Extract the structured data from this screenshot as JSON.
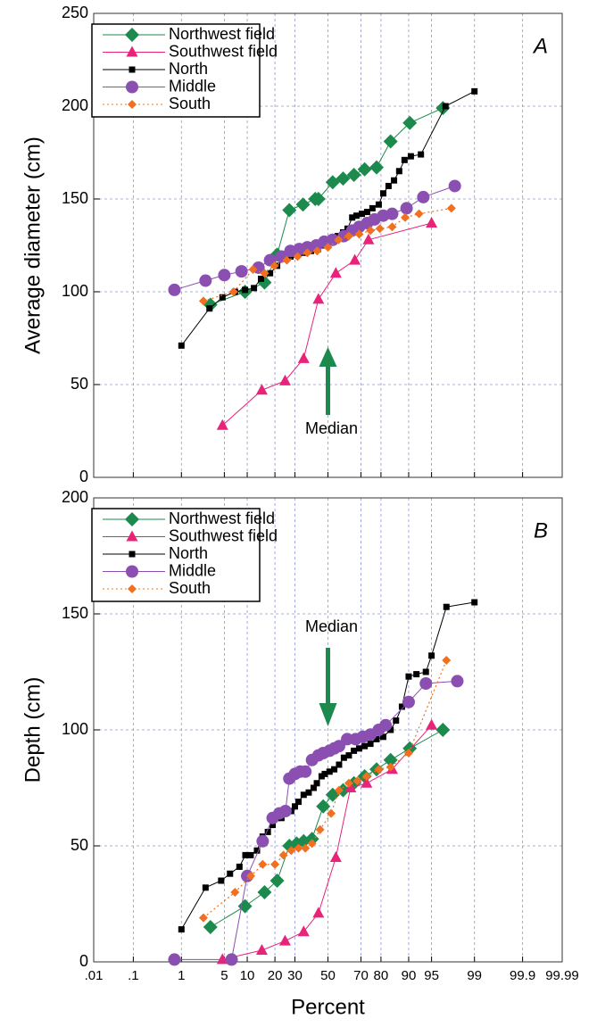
{
  "chart_data": [
    {
      "type": "line",
      "panel_label": "A",
      "annotation": "Median",
      "ylabel": "Average diameter (cm)",
      "xscale": "probability",
      "grid": true,
      "legend": "upper left",
      "xlim": [
        0.01,
        99.99
      ],
      "xticks": [
        0.01,
        0.1,
        1,
        5,
        10,
        20,
        30,
        50,
        70,
        80,
        90,
        95,
        99,
        99.9,
        99.99
      ],
      "ylim": [
        0,
        250
      ],
      "yticks": [
        0,
        50,
        100,
        150,
        200,
        250
      ],
      "series": [
        {
          "name": "Northwest field",
          "color": "#1b8a4c",
          "marker": "diamond",
          "linestyle": "solid",
          "x": [
            3.1,
            9.4,
            15.7,
            21,
            27,
            34.6,
            42,
            44,
            53,
            59.5,
            66,
            72,
            78,
            84,
            90.3,
            96.6
          ],
          "values": [
            93,
            100,
            105,
            120,
            144,
            147,
            150,
            150,
            159,
            161,
            163,
            166,
            167,
            181,
            191,
            199
          ]
        },
        {
          "name": "Southwest field",
          "color": "#e8237a",
          "marker": "triangle",
          "linestyle": "solid",
          "x": [
            4.7,
            14.7,
            24.8,
            35,
            44,
            55,
            66.5,
            74,
            95
          ],
          "values": [
            28,
            47,
            52,
            64,
            96,
            110,
            117,
            128,
            137
          ]
        },
        {
          "name": "North",
          "color": "#000000",
          "marker": "square",
          "linestyle": "solid",
          "x": [
            1.0,
            3.0,
            4.7,
            7.0,
            9.4,
            12,
            14.4,
            17.9,
            21,
            24.4,
            27.6,
            31,
            35,
            39.4,
            43.8,
            47.7,
            52.3,
            56.2,
            59.5,
            62.2,
            65,
            67.5,
            70.5,
            73.3,
            76,
            79,
            81,
            83.2,
            85.3,
            87.1,
            88.8,
            90.6,
            93,
            96.9,
            99.0
          ],
          "values": [
            71,
            91,
            97,
            100,
            101,
            102,
            107,
            110,
            114,
            118,
            119,
            120,
            121,
            122,
            123,
            125,
            128,
            130,
            132,
            134,
            140,
            141,
            142,
            143,
            145,
            147,
            153,
            157,
            160,
            165,
            171,
            173,
            174,
            200,
            208
          ]
        },
        {
          "name": "Middle",
          "color": "#8a4fb0",
          "marker": "circle",
          "linestyle": "solid",
          "x": [
            0.74,
            2.6,
            5.0,
            8.5,
            13.5,
            17.9,
            23,
            27.6,
            32.5,
            37.2,
            42.7,
            47.7,
            53,
            60,
            65,
            69,
            73.3,
            77,
            81,
            84.6,
            89.4,
            93.5,
            97.8
          ],
          "values": [
            101,
            106,
            109,
            111,
            113,
            117,
            119,
            122,
            123,
            124,
            125,
            127,
            128,
            130,
            133,
            135,
            137,
            139,
            141,
            142,
            145,
            151,
            157
          ]
        },
        {
          "name": "South",
          "color": "#f07020",
          "marker": "small-diamond",
          "linestyle": "dotted",
          "x": [
            2.4,
            6.7,
            11.7,
            15.7,
            19.8,
            25.7,
            31.5,
            37.2,
            43.2,
            50,
            56.7,
            63,
            69,
            75,
            79.5,
            84.6,
            89,
            92.6,
            97.5
          ],
          "values": [
            95,
            100,
            112,
            110,
            114,
            117,
            119,
            121,
            122,
            124,
            128,
            130,
            131,
            133,
            134,
            135,
            140,
            142,
            145
          ]
        }
      ]
    },
    {
      "type": "line",
      "panel_label": "B",
      "annotation": "Median",
      "ylabel": "Depth (cm)",
      "xlabel": "Percent",
      "xscale": "probability",
      "grid": true,
      "legend": "upper left",
      "xlim": [
        0.01,
        99.99
      ],
      "xticks": [
        {
          "value": 0.01,
          "label": ".01"
        },
        {
          "value": 0.1,
          "label": ".1"
        },
        1,
        5,
        10,
        20,
        30,
        50,
        70,
        80,
        90,
        95,
        99,
        99.9,
        99.99
      ],
      "ylim": [
        0,
        200
      ],
      "yticks": [
        0,
        50,
        100,
        150,
        200
      ],
      "series": [
        {
          "name": "Northwest field",
          "color": "#1b8a4c",
          "marker": "diamond",
          "linestyle": "solid",
          "x": [
            3.1,
            9.4,
            15.7,
            21,
            27,
            31,
            35,
            40,
            47,
            53,
            59.5,
            66,
            72,
            78,
            84,
            90.3,
            96.6
          ],
          "values": [
            15,
            24,
            30,
            35,
            50,
            51,
            52,
            53,
            67,
            72,
            74,
            77,
            80,
            83,
            87,
            92,
            100
          ]
        },
        {
          "name": "Southwest field",
          "color": "#e8237a",
          "marker": "triangle",
          "linestyle": "solid",
          "x": [
            4.7,
            14.7,
            24.8,
            35,
            44,
            55,
            64,
            73,
            84.6,
            95
          ],
          "values": [
            1,
            5,
            9,
            13,
            21,
            45,
            75,
            77,
            83,
            102
          ]
        },
        {
          "name": "North",
          "color": "#000000",
          "marker": "square",
          "linestyle": "solid",
          "x": [
            1,
            2.6,
            4.5,
            6,
            8,
            9.5,
            11,
            13,
            15,
            17,
            19,
            21,
            23,
            25,
            28,
            30,
            32,
            35,
            38,
            41,
            43,
            46,
            48,
            51,
            54,
            57,
            60,
            63,
            66,
            69,
            72,
            75,
            78,
            81,
            84,
            86,
            88,
            90,
            92,
            94,
            95,
            97,
            99
          ],
          "values": [
            14,
            32,
            35,
            38,
            41,
            46,
            46,
            48,
            54,
            56,
            59,
            62,
            62,
            65,
            65,
            67,
            69,
            72,
            73,
            75,
            77,
            80,
            81,
            82,
            83,
            85,
            88,
            89,
            91,
            92,
            93,
            94,
            96,
            97,
            100,
            104,
            110,
            123,
            124,
            125,
            132,
            153,
            155
          ]
        },
        {
          "name": "Middle",
          "color": "#8a4fb0",
          "marker": "circle",
          "linestyle": "solid",
          "x": [
            0.74,
            6.3,
            10,
            15,
            19,
            22,
            25,
            27,
            30,
            33,
            36,
            40,
            44,
            47,
            51,
            54,
            57,
            62,
            67,
            71,
            75,
            79,
            82,
            90,
            94,
            98
          ],
          "values": [
            1,
            1,
            37,
            52,
            62,
            64,
            65,
            79,
            81,
            82,
            82,
            87,
            89,
            90,
            91,
            92,
            93,
            96,
            96,
            97,
            98,
            100,
            102,
            112,
            120,
            121
          ]
        },
        {
          "name": "South",
          "color": "#f07020",
          "marker": "small-diamond",
          "linestyle": "dotted",
          "x": [
            2.4,
            7,
            11,
            15,
            20,
            24,
            28,
            32,
            36,
            40,
            45,
            52,
            57,
            63,
            68,
            73,
            79,
            84,
            90,
            97
          ],
          "values": [
            19,
            30,
            37,
            42,
            42,
            46,
            48,
            49,
            49,
            51,
            57,
            64,
            74,
            77,
            78,
            80,
            83,
            84,
            90,
            130
          ]
        }
      ]
    }
  ]
}
